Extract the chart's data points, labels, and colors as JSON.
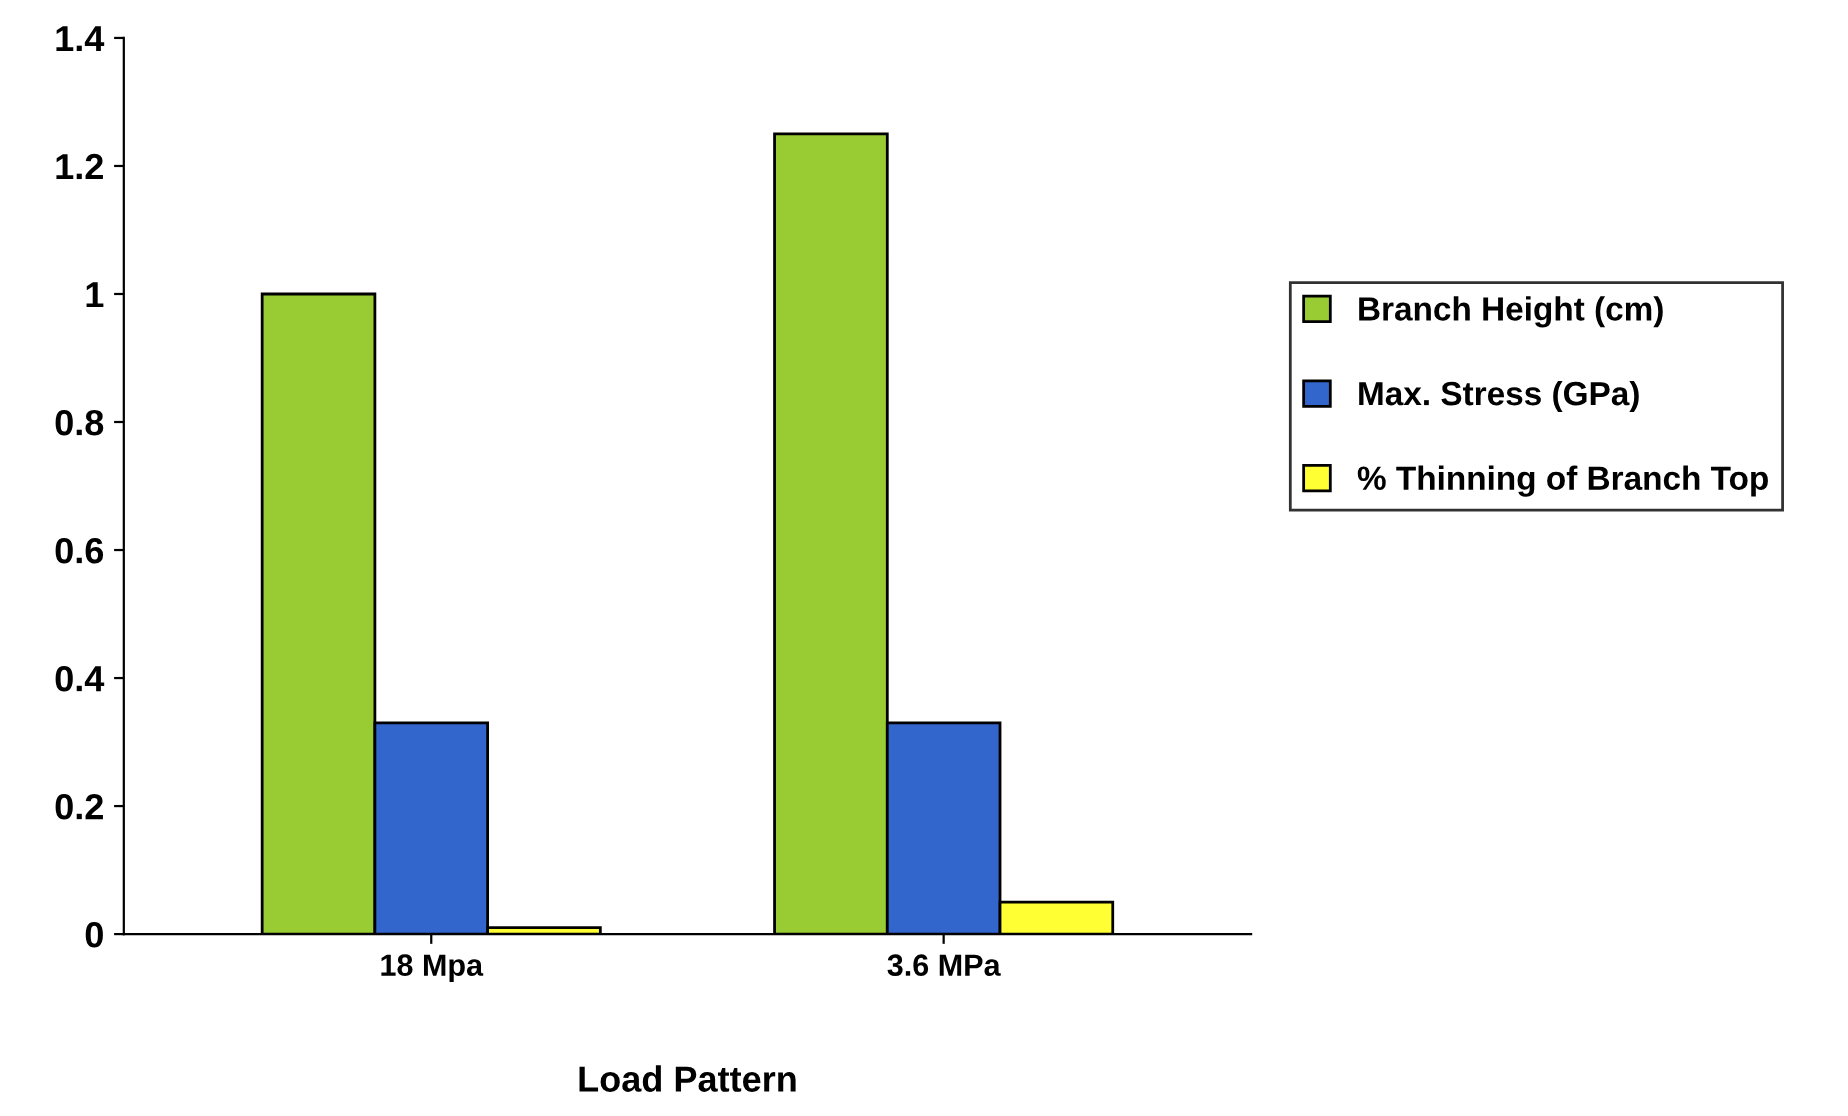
{
  "chart_data": {
    "type": "bar",
    "xlabel": "Load Pattern",
    "categories": [
      "18 Mpa",
      "3.6 MPa"
    ],
    "series": [
      {
        "name": "Branch Height (cm)",
        "color": "#99cc33",
        "values": [
          1.0,
          1.25
        ]
      },
      {
        "name": "Max. Stress (GPa)",
        "color": "#3366cc",
        "values": [
          0.33,
          0.33
        ]
      },
      {
        "name": "% Thinning of Branch Top",
        "color": "#ffff33",
        "values": [
          0.01,
          0.05
        ]
      }
    ],
    "ylim": [
      0,
      1.4
    ],
    "yticks": [
      0,
      0.2,
      0.4,
      0.6,
      0.8,
      1,
      1.2,
      1.4
    ],
    "grid": false,
    "legend": "right"
  }
}
